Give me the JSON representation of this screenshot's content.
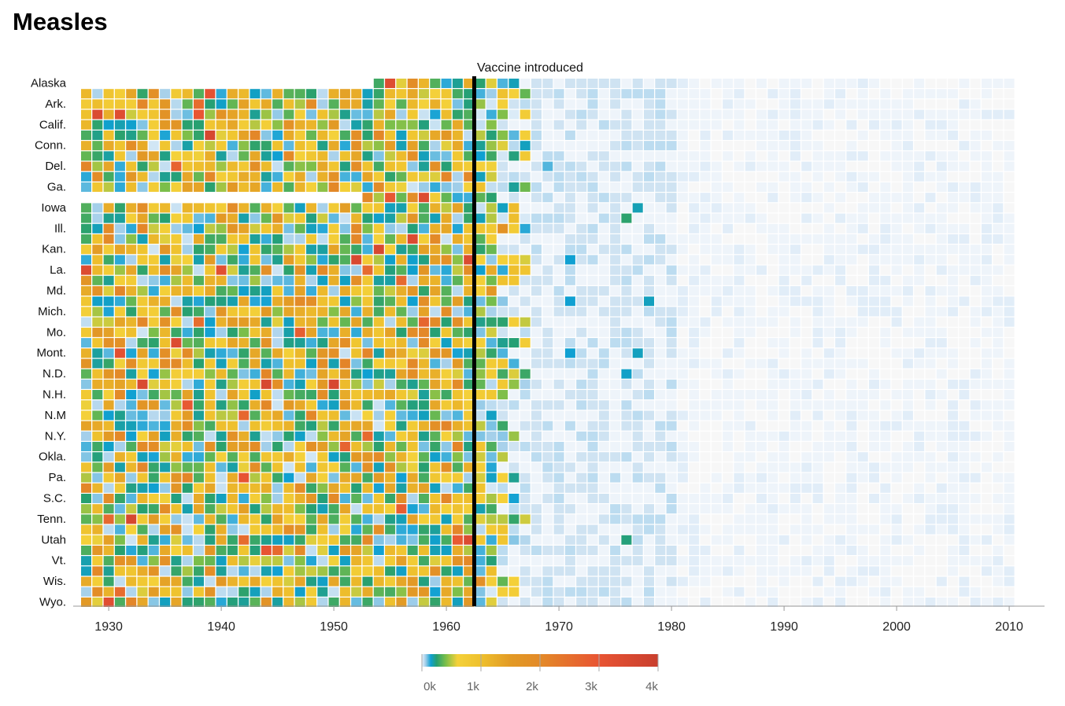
{
  "page": {
    "title": "Measles"
  },
  "chart_data": {
    "type": "heatmap",
    "title": "Measles",
    "xlabel": "",
    "ylabel": "",
    "x_range": [
      1928,
      2012
    ],
    "x_ticks": [
      1930,
      1940,
      1950,
      1960,
      1970,
      1980,
      1990,
      2000,
      2010
    ],
    "row_labels": [
      "Alaska",
      "",
      "Ark.",
      "",
      "Calif.",
      "",
      "Conn.",
      "",
      "Del.",
      "",
      "Ga.",
      "",
      "Iowa",
      "",
      "Ill.",
      "",
      "Kan.",
      "",
      "La.",
      "",
      "Md.",
      "",
      "Mich.",
      "",
      "Mo.",
      "",
      "Mont.",
      "",
      "N.D.",
      "",
      "N.H.",
      "",
      "N.M",
      "",
      "N.Y.",
      "",
      "Okla.",
      "",
      "Pa.",
      "",
      "S.C.",
      "",
      "Tenn.",
      "",
      "Utah",
      "",
      "Vt.",
      "",
      "Wis.",
      "",
      "Wyo."
    ],
    "annotation": {
      "label": "Vaccine introduced",
      "year": 1963
    },
    "legend": {
      "ticks": [
        "0k",
        "1k",
        "2k",
        "3k",
        "4k"
      ],
      "tick_values": [
        0,
        1000,
        2000,
        3000,
        4000
      ],
      "stops": [
        {
          "value": 0,
          "color": "#e7f1fa"
        },
        {
          "value": 60,
          "color": "#a6d0ea"
        },
        {
          "value": 150,
          "color": "#0fa0d2"
        },
        {
          "value": 250,
          "color": "#27a070"
        },
        {
          "value": 400,
          "color": "#79be4a"
        },
        {
          "value": 600,
          "color": "#f4d13a"
        },
        {
          "value": 1000,
          "color": "#eec02d"
        },
        {
          "value": 1500,
          "color": "#e29a25"
        },
        {
          "value": 2000,
          "color": "#e38a28"
        },
        {
          "value": 3000,
          "color": "#e85433"
        },
        {
          "value": 4000,
          "color": "#c93f2e"
        }
      ]
    },
    "colors": {
      "empty": "#f7f7f7",
      "trace": "#eef4fa",
      "low": "#cfe3f2",
      "marker": "#000000",
      "axis": "#999999"
    },
    "rows_starting_1954": [
      "Alaska"
    ],
    "rows_starting_1953": [
      "Ga.+"
    ],
    "isolated_highs": [
      {
        "row": "Iowa",
        "year": 1977,
        "value": 180
      },
      {
        "row": "Iowa+",
        "year": 1976,
        "value": 260
      },
      {
        "row": "Md.+",
        "year": 1978,
        "value": 170
      },
      {
        "row": "Md.+",
        "year": 1971,
        "value": 150
      },
      {
        "row": "Mont.",
        "year": 1977,
        "value": 170
      },
      {
        "row": "Mont.",
        "year": 1971,
        "value": 150
      },
      {
        "row": "N.D.",
        "year": 1976,
        "value": 160
      },
      {
        "row": "Utah",
        "year": 1976,
        "value": 240
      },
      {
        "row": "Kan.+",
        "year": 1971,
        "value": 150
      },
      {
        "row": "Del.",
        "year": 1969,
        "value": 110
      }
    ]
  }
}
